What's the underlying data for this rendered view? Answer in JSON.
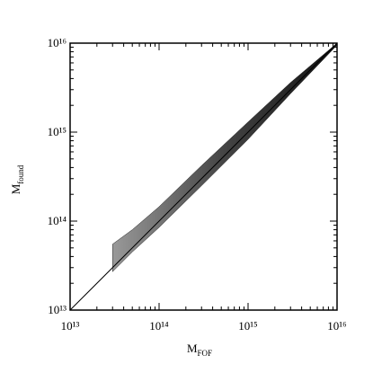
{
  "chart_data": {
    "type": "area",
    "log": true,
    "diagonal": true,
    "color": "#222222",
    "xlabel": "M",
    "xlabel_sub": "FOF",
    "ylabel": "M",
    "ylabel_sub": "found",
    "x": [
      30000000000000.0,
      50000000000000.0,
      100000000000000.0,
      300000000000000.0,
      1000000000000000.0,
      3000000000000000.0,
      1e+16
    ],
    "y_high": [
      55000000000000.0,
      80000000000000.0,
      145000000000000.0,
      420000000000000.0,
      1300000000000000.0,
      3600000000000000.0,
      1e+16
    ],
    "y_low": [
      27000000000000.0,
      45000000000000.0,
      85000000000000.0,
      250000000000000.0,
      830000000000000.0,
      2700000000000000.0,
      9500000000000000.0
    ],
    "xlim": [
      10000000000000.0,
      1e+16
    ],
    "ylim": [
      10000000000000.0,
      1e+16
    ],
    "xticks": [
      {
        "value": 10000000000000.0,
        "label": "10¹³"
      },
      {
        "value": 100000000000000.0,
        "label": "10¹⁴"
      },
      {
        "value": 1000000000000000.0,
        "label": "10¹⁵"
      },
      {
        "value": 1e+16,
        "label": "10¹⁶"
      }
    ],
    "yticks": [
      {
        "value": 10000000000000.0,
        "label": "10¹³"
      },
      {
        "value": 100000000000000.0,
        "label": "10¹⁴"
      },
      {
        "value": 1000000000000000.0,
        "label": "10¹⁵"
      },
      {
        "value": 1e+16,
        "label": "10¹⁶"
      }
    ]
  }
}
